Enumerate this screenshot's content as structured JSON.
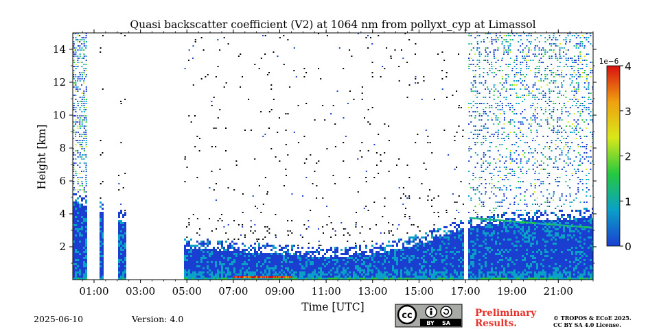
{
  "chart_data": {
    "type": "heatmap",
    "title": "Quasi backscatter coefficient (V2) at 1064 nm from pollyxt_cyp at Limassol",
    "xlabel": "Time [UTC]",
    "ylabel": "Height [km]",
    "xlim": [
      "00:05",
      "22:30"
    ],
    "ylim": [
      0,
      15
    ],
    "x_ticks": [
      "01:00",
      "03:00",
      "05:00",
      "07:00",
      "09:00",
      "11:00",
      "13:00",
      "15:00",
      "17:00",
      "19:00",
      "21:00"
    ],
    "y_ticks": [
      2,
      4,
      6,
      8,
      10,
      12,
      14
    ],
    "colorbar": {
      "colormap": "jet-like",
      "range": [
        0,
        4
      ],
      "ticks": [
        "0",
        "1",
        "2",
        "3",
        "4"
      ],
      "multiplier": "1e−6",
      "colors": [
        "#1a3fd0",
        "#0aa0c8",
        "#25c840",
        "#d8e81a",
        "#f0a010",
        "#d81010"
      ]
    },
    "features": {
      "gaps_utc": [
        [
          "00:40",
          "01:15"
        ],
        [
          "01:25",
          "02:00"
        ],
        [
          "02:25",
          "04:55"
        ],
        [
          "16:58",
          "17:08"
        ]
      ],
      "boundary_layer_top_km": [
        {
          "time": "00:05",
          "height": 5.5
        },
        {
          "time": "05:00",
          "height": 2.6
        },
        {
          "time": "09:00",
          "height": 2.2
        },
        {
          "time": "11:00",
          "height": 2.0
        },
        {
          "time": "13:00",
          "height": 2.2
        },
        {
          "time": "15:00",
          "height": 2.8
        },
        {
          "time": "17:00",
          "height": 3.8
        },
        {
          "time": "19:00",
          "height": 4.2
        },
        {
          "time": "22:30",
          "height": 4.4
        }
      ],
      "enhanced_surface_layer": [
        [
          "07:00",
          "09:30"
        ]
      ]
    }
  },
  "footer": {
    "date": "2025-06-10",
    "version": "Version: 4.0",
    "preliminary_line1": "Preliminary",
    "preliminary_line2": "Results.",
    "copyright_line1": "© TROPOS & ECoE 2025.",
    "copyright_line2": "CC BY SA 4.0 License.",
    "license_badge": {
      "cc": "cc",
      "by": "BY",
      "sa": "SA"
    }
  },
  "colors": {
    "preliminary": "#e8302a",
    "license_gray": "#a8aaa6"
  }
}
